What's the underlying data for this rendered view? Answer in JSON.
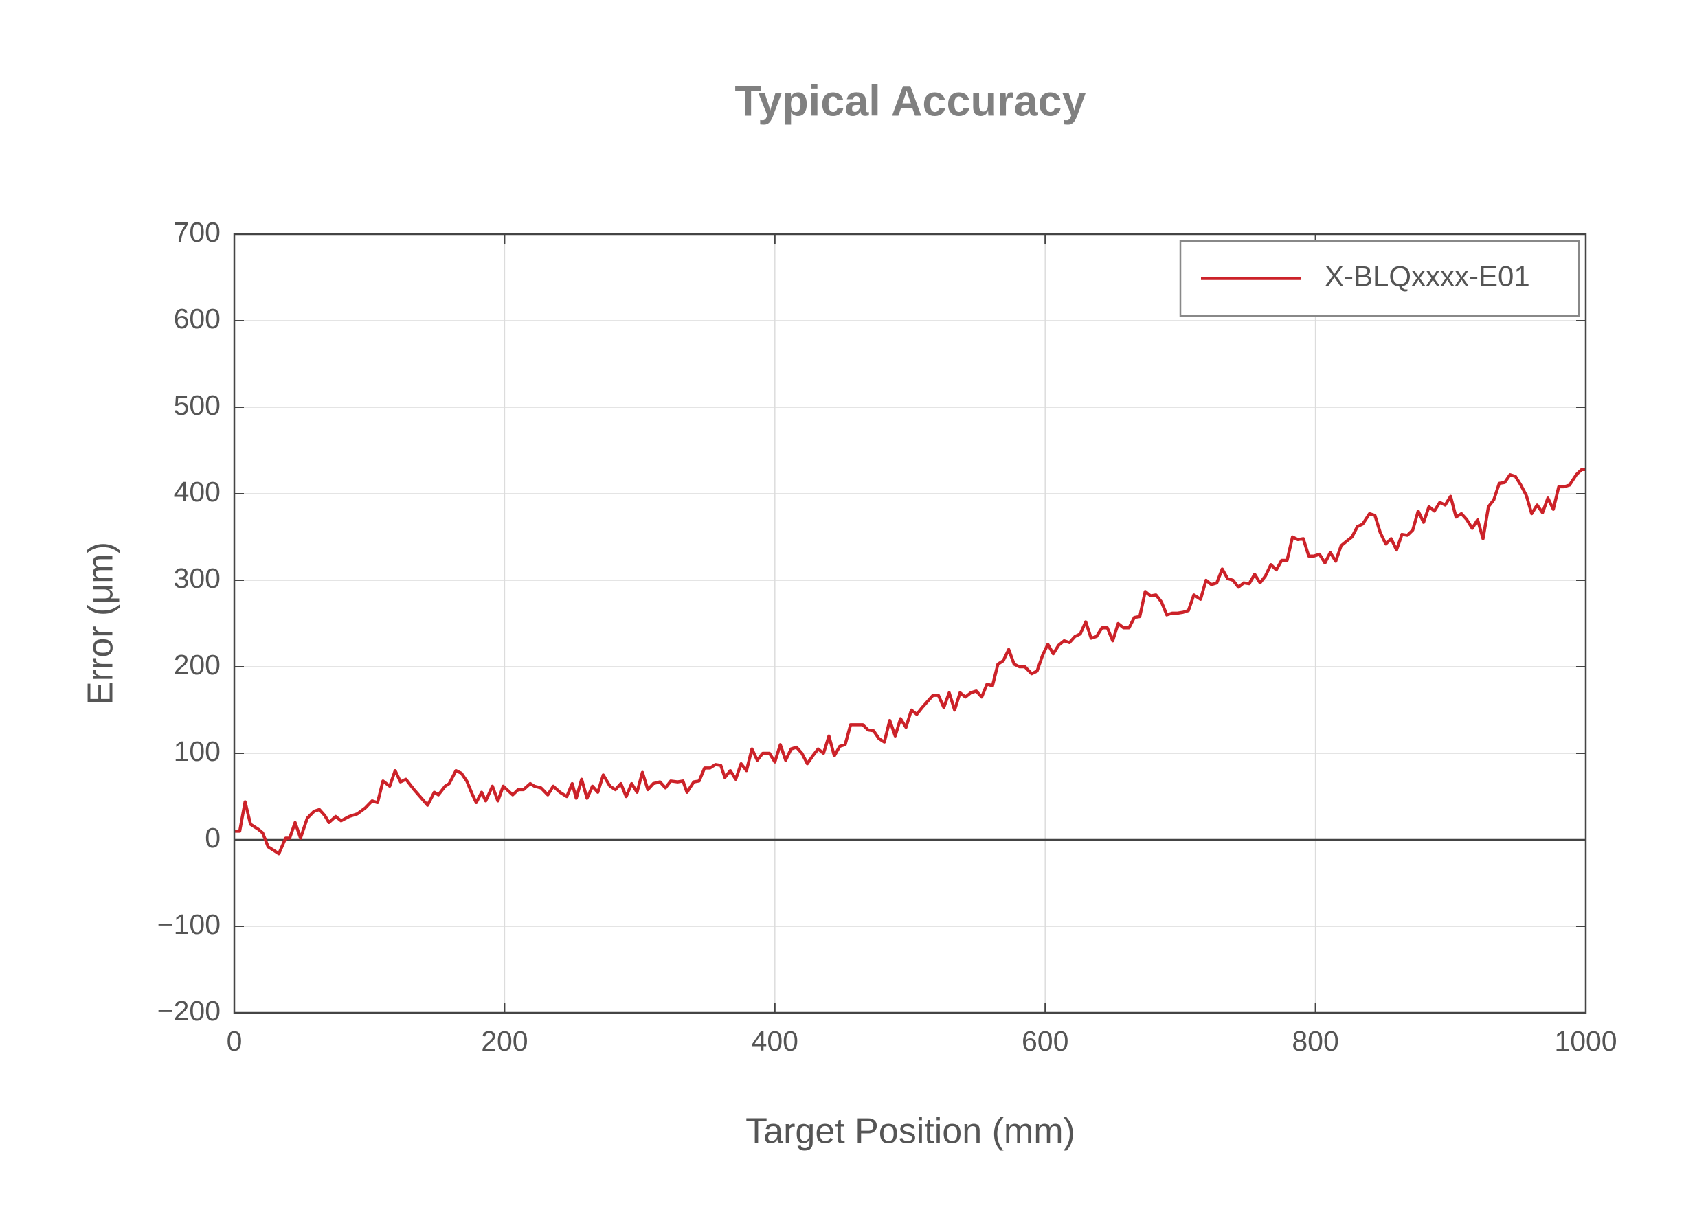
{
  "chart_data": {
    "type": "line",
    "title": "Typical Accuracy",
    "xlabel": "Target Position (mm)",
    "ylabel": "Error (μm)",
    "xlim": [
      0,
      1000
    ],
    "xticks": [
      0,
      200,
      400,
      600,
      800,
      1000
    ],
    "ylim": [
      -200,
      700
    ],
    "yticks": [
      {
        "value": -200,
        "label": "−200"
      },
      {
        "value": -100,
        "label": "−100"
      },
      0,
      100,
      200,
      300,
      400,
      500,
      600,
      700
    ],
    "grid": true,
    "legend": "upper right",
    "x": [
      0,
      4,
      8,
      12,
      18,
      21,
      25,
      33,
      38,
      41,
      45,
      49,
      54,
      59,
      63,
      67,
      70,
      75,
      79,
      85,
      91,
      97,
      102,
      106,
      110,
      115,
      119,
      123,
      127,
      133,
      143,
      148,
      151,
      156,
      159,
      164,
      168,
      172,
      176,
      179,
      183,
      186,
      191,
      195,
      199,
      206,
      210,
      214,
      219,
      222,
      227,
      232,
      236,
      241,
      246,
      250,
      253,
      257,
      261,
      265,
      269,
      273,
      278,
      282,
      286,
      290,
      294,
      298,
      302,
      306,
      310,
      315,
      319,
      323,
      328,
      332,
      335,
      340,
      344,
      348,
      352,
      356,
      360,
      363,
      367,
      371,
      375,
      379,
      383,
      387,
      391,
      396,
      400,
      404,
      408,
      412,
      416,
      420,
      424,
      428,
      432,
      436,
      440,
      444,
      448,
      452,
      456,
      465,
      469,
      473,
      477,
      481,
      485,
      489,
      493,
      497,
      501,
      505,
      509,
      513,
      517,
      521,
      525,
      529,
      533,
      537,
      541,
      545,
      549,
      553,
      557,
      561,
      565,
      569,
      573,
      577,
      581,
      585,
      590,
      594,
      598,
      602,
      606,
      610,
      614,
      618,
      622,
      626,
      630,
      634,
      638,
      642,
      646,
      650,
      654,
      658,
      662,
      666,
      670,
      674,
      678,
      682,
      686,
      690,
      694,
      698,
      702,
      706,
      710,
      715,
      719,
      723,
      727,
      731,
      735,
      739,
      743,
      747,
      751,
      755,
      759,
      763,
      767,
      771,
      775,
      779,
      783,
      787,
      791,
      795,
      799,
      803,
      807,
      811,
      815,
      819,
      823,
      827,
      831,
      835,
      840,
      844,
      848,
      852,
      856,
      860,
      864,
      868,
      872,
      876,
      880,
      884,
      888,
      892,
      896,
      900,
      904,
      908,
      912,
      916,
      920,
      924,
      928,
      932,
      936,
      940,
      944,
      948,
      952,
      956,
      960,
      964,
      968,
      972,
      976,
      980,
      984,
      988,
      993,
      997,
      1000
    ],
    "series": [
      {
        "name": "X-BLQxxxx-E01",
        "color": "#cc2229",
        "values": [
          10,
          10,
          44,
          18,
          12,
          8,
          -8,
          -16,
          2,
          2,
          20,
          2,
          25,
          33,
          35,
          28,
          20,
          27,
          22,
          27,
          30,
          37,
          45,
          43,
          68,
          62,
          80,
          67,
          70,
          58,
          40,
          55,
          52,
          62,
          65,
          80,
          77,
          68,
          53,
          43,
          55,
          45,
          62,
          45,
          62,
          52,
          58,
          58,
          65,
          62,
          60,
          52,
          62,
          55,
          50,
          65,
          48,
          70,
          48,
          62,
          55,
          75,
          62,
          58,
          65,
          50,
          65,
          55,
          78,
          58,
          65,
          67,
          60,
          68,
          67,
          68,
          55,
          67,
          68,
          83,
          83,
          87,
          86,
          72,
          80,
          70,
          88,
          80,
          105,
          92,
          100,
          100,
          90,
          110,
          92,
          105,
          107,
          100,
          88,
          97,
          105,
          100,
          120,
          97,
          108,
          110,
          133,
          133,
          127,
          126,
          117,
          113,
          138,
          120,
          140,
          130,
          150,
          145,
          153,
          160,
          167,
          167,
          153,
          170,
          150,
          170,
          165,
          170,
          172,
          165,
          180,
          178,
          203,
          207,
          220,
          203,
          200,
          200,
          192,
          195,
          213,
          226,
          215,
          225,
          230,
          228,
          235,
          238,
          252,
          233,
          235,
          245,
          245,
          230,
          250,
          245,
          245,
          257,
          258,
          287,
          282,
          283,
          275,
          260,
          262,
          262,
          263,
          265,
          283,
          278,
          300,
          295,
          297,
          313,
          302,
          300,
          292,
          297,
          296,
          307,
          297,
          305,
          318,
          312,
          323,
          323,
          350,
          347,
          348,
          328,
          328,
          330,
          320,
          332,
          322,
          340,
          345,
          350,
          362,
          365,
          377,
          375,
          355,
          342,
          348,
          335,
          353,
          352,
          358,
          380,
          367,
          385,
          380,
          390,
          387,
          397,
          373,
          377,
          370,
          360,
          370,
          348,
          385,
          393,
          412,
          413,
          422,
          420,
          410,
          398,
          377,
          387,
          378,
          395,
          382,
          408,
          408,
          410,
          422,
          428,
          428
        ]
      }
    ]
  }
}
